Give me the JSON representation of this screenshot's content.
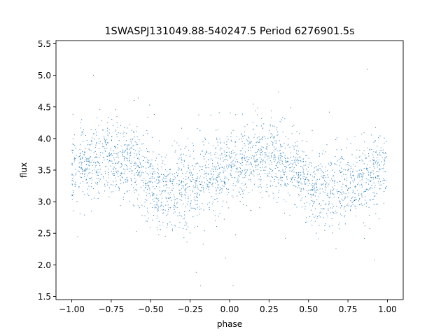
{
  "chart_data": {
    "type": "scatter",
    "title": "1SWASPJ131049.88-540247.5 Period 6276901.5s",
    "xlabel": "phase",
    "ylabel": "flux",
    "xlim": [
      -1.1,
      1.1
    ],
    "ylim": [
      1.45,
      5.55
    ],
    "xticks": [
      "−1.00",
      "−0.75",
      "−0.50",
      "−0.25",
      "0.00",
      "0.25",
      "0.50",
      "0.75",
      "1.00"
    ],
    "xtick_values": [
      -1.0,
      -0.75,
      -0.5,
      -0.25,
      0.0,
      0.25,
      0.5,
      0.75,
      1.0
    ],
    "yticks": [
      "1.5",
      "2.0",
      "2.5",
      "3.0",
      "3.5",
      "4.0",
      "4.5",
      "5.0",
      "5.5"
    ],
    "ytick_values": [
      1.5,
      2.0,
      2.5,
      3.0,
      3.5,
      4.0,
      4.5,
      5.0,
      5.5
    ],
    "grid": false,
    "point_color": "#1f77b4",
    "series": [
      {
        "profile_phase": [
          -1.0,
          -0.9,
          -0.8,
          -0.7,
          -0.6,
          -0.5,
          -0.45,
          -0.4,
          -0.3,
          -0.2,
          -0.1,
          0.0,
          0.1,
          0.2,
          0.3,
          0.4,
          0.5,
          0.55,
          0.6,
          0.7,
          0.8,
          0.9,
          1.0
        ],
        "profile_flux": [
          3.55,
          3.6,
          3.72,
          3.68,
          3.55,
          3.3,
          3.15,
          3.12,
          3.18,
          3.3,
          3.45,
          3.55,
          3.6,
          3.72,
          3.68,
          3.55,
          3.3,
          3.15,
          3.12,
          3.18,
          3.3,
          3.45,
          3.55
        ]
      }
    ]
  }
}
